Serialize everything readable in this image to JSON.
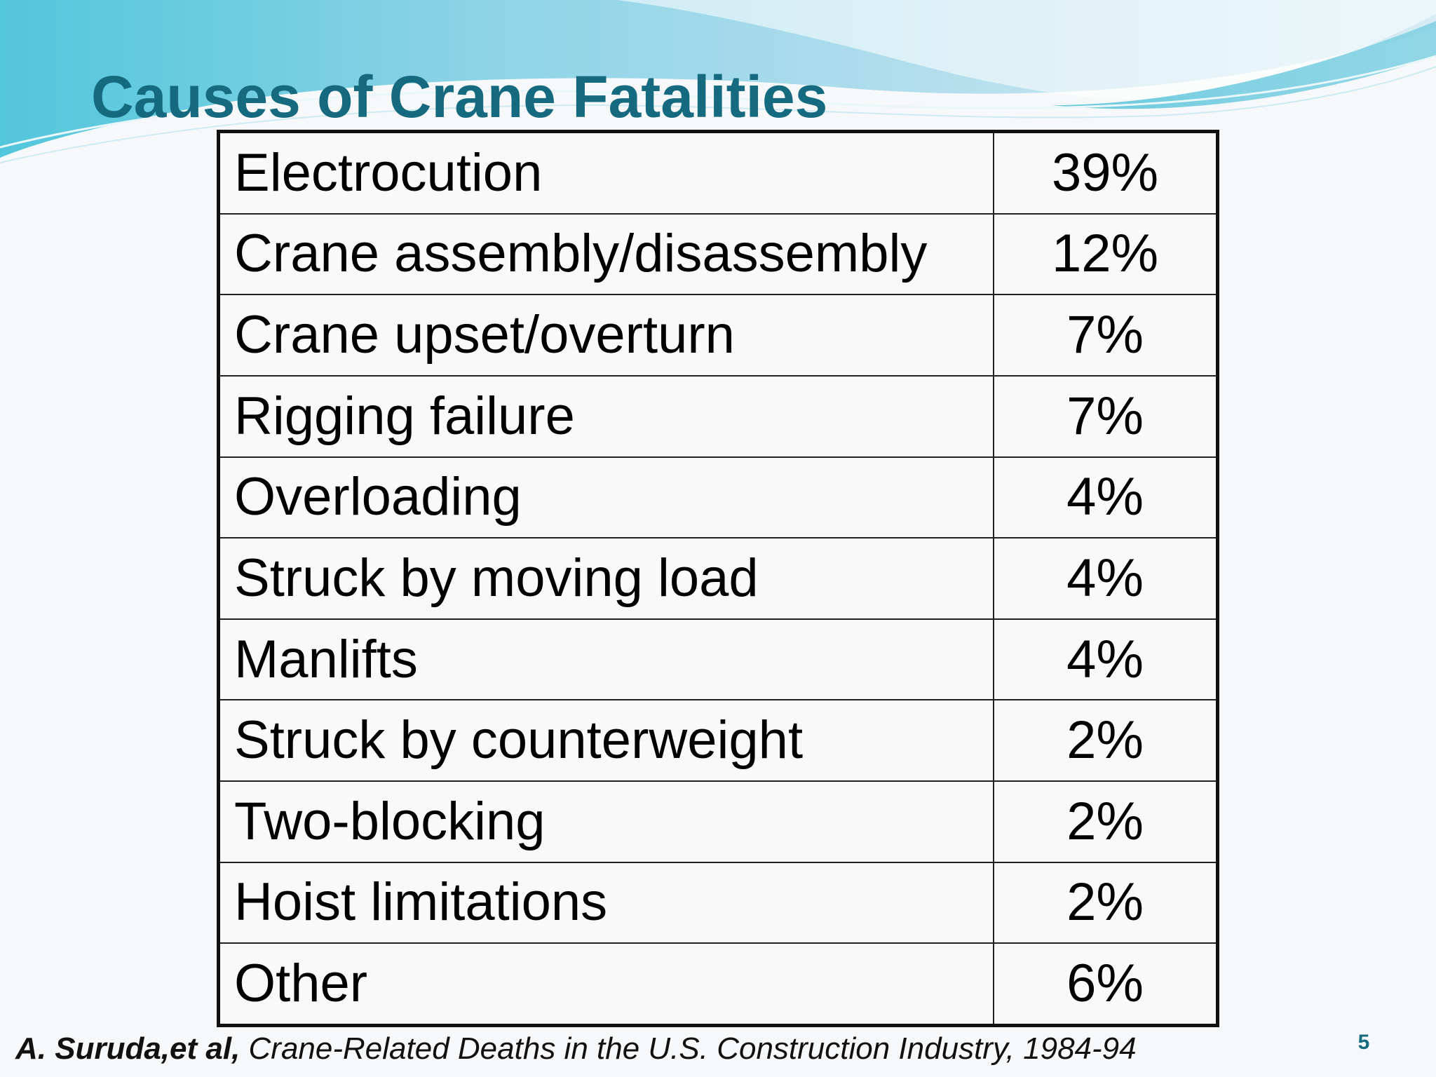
{
  "slide": {
    "title": "Causes of Crane Fatalities",
    "page_number": "5",
    "accent_color": "#156a7f",
    "background_color": "#f7f8f9"
  },
  "table": {
    "rows": [
      {
        "cause": "Electrocution",
        "percent": "39%"
      },
      {
        "cause": "Crane assembly/disassembly",
        "percent": "12%"
      },
      {
        "cause": "Crane upset/overturn",
        "percent": "7%"
      },
      {
        "cause": "Rigging failure",
        "percent": "7%"
      },
      {
        "cause": "Overloading",
        "percent": "4%"
      },
      {
        "cause": "Struck by moving load",
        "percent": "4%"
      },
      {
        "cause": "Manlifts",
        "percent": "4%"
      },
      {
        "cause": "Struck by counterweight",
        "percent": "2%"
      },
      {
        "cause": "Two-blocking",
        "percent": "2%"
      },
      {
        "cause": "Hoist limitations",
        "percent": "2%"
      },
      {
        "cause": "Other",
        "percent": "6%"
      }
    ]
  },
  "citation": {
    "author": "A. Suruda,et al,",
    "work": "Crane-Related Deaths in the U.S. Construction Industry, 1984-94"
  }
}
